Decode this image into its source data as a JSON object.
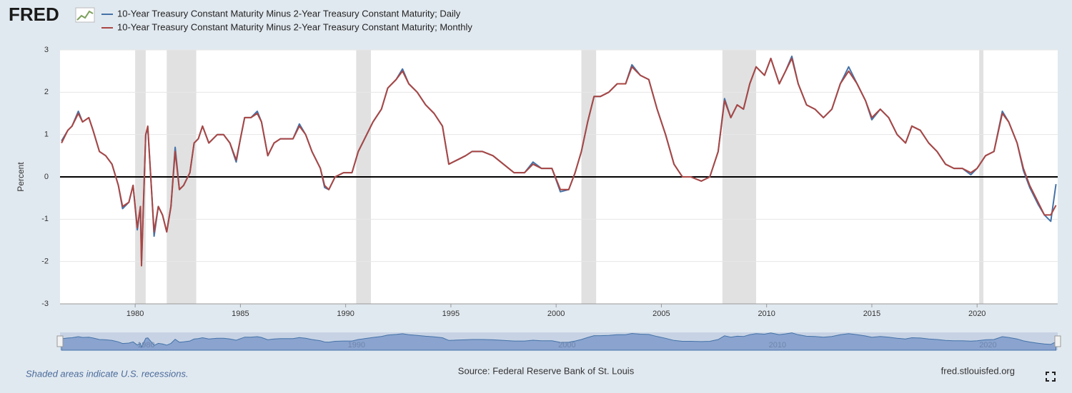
{
  "chart_data": {
    "type": "line",
    "logo": "FRED",
    "ylabel": "Percent",
    "note": "Shaded areas indicate U.S. recessions.",
    "source": "Source: Federal Reserve Bank of St. Louis",
    "site": "fred.stlouisfed.org",
    "xlim": [
      1976.43,
      2023.83
    ],
    "xticks": [
      1980,
      1985,
      1990,
      1995,
      2000,
      2005,
      2010,
      2015,
      2020
    ],
    "ylim": [
      -3,
      3
    ],
    "yticks": [
      -3,
      -2,
      -1,
      0,
      1,
      2,
      3
    ],
    "grid": true,
    "legend": "top",
    "recessions": [
      [
        1980.0,
        1980.5
      ],
      [
        1981.5,
        1982.9
      ],
      [
        1990.5,
        1991.2
      ],
      [
        2001.2,
        2001.9
      ],
      [
        2007.9,
        2009.5
      ],
      [
        2020.1,
        2020.3
      ]
    ],
    "navigator_ticks": [
      1980,
      1990,
      2000,
      2010,
      2020
    ],
    "x": [
      1976.5,
      1976.8,
      1977.0,
      1977.3,
      1977.5,
      1977.8,
      1978.0,
      1978.3,
      1978.6,
      1978.9,
      1979.2,
      1979.4,
      1979.7,
      1979.9,
      1980.1,
      1980.25,
      1980.3,
      1980.5,
      1980.6,
      1980.8,
      1980.9,
      1981.1,
      1981.3,
      1981.5,
      1981.7,
      1981.9,
      1982.1,
      1982.3,
      1982.6,
      1982.8,
      1983.0,
      1983.2,
      1983.5,
      1983.9,
      1984.2,
      1984.5,
      1984.8,
      1985.0,
      1985.2,
      1985.5,
      1985.8,
      1986.0,
      1986.3,
      1986.6,
      1986.9,
      1987.2,
      1987.5,
      1987.8,
      1988.1,
      1988.4,
      1988.8,
      1989.0,
      1989.2,
      1989.5,
      1989.9,
      1990.3,
      1990.6,
      1990.9,
      1991.3,
      1991.7,
      1992.0,
      1992.4,
      1992.7,
      1993.0,
      1993.4,
      1993.8,
      1994.2,
      1994.6,
      1994.9,
      1995.3,
      1995.7,
      1996.0,
      1996.5,
      1997.0,
      1997.5,
      1998.0,
      1998.5,
      1998.9,
      1999.3,
      1999.8,
      2000.2,
      2000.6,
      2000.9,
      2001.2,
      2001.5,
      2001.8,
      2002.1,
      2002.5,
      2002.9,
      2003.3,
      2003.6,
      2004.0,
      2004.4,
      2004.8,
      2005.2,
      2005.6,
      2006.0,
      2006.4,
      2006.9,
      2007.3,
      2007.7,
      2008.0,
      2008.3,
      2008.6,
      2008.9,
      2009.2,
      2009.5,
      2009.9,
      2010.2,
      2010.6,
      2010.9,
      2011.2,
      2011.5,
      2011.9,
      2012.3,
      2012.7,
      2013.1,
      2013.5,
      2013.9,
      2014.3,
      2014.7,
      2015.0,
      2015.4,
      2015.8,
      2016.2,
      2016.6,
      2016.9,
      2017.3,
      2017.7,
      2018.1,
      2018.5,
      2018.9,
      2019.3,
      2019.7,
      2020.0,
      2020.4,
      2020.8,
      2021.2,
      2021.5,
      2021.9,
      2022.2,
      2022.5,
      2022.9,
      2023.2,
      2023.5,
      2023.75
    ],
    "series": [
      {
        "name": "10-Year Treasury Constant Maturity Minus 2-Year Treasury Constant Maturity; Daily",
        "color": "#4572a7",
        "values": [
          0.85,
          1.1,
          1.2,
          1.55,
          1.3,
          1.4,
          1.1,
          0.6,
          0.5,
          0.3,
          -0.2,
          -0.75,
          -0.6,
          -0.2,
          -1.25,
          -0.7,
          -2.0,
          1.0,
          1.15,
          -0.5,
          -1.4,
          -0.7,
          -0.9,
          -1.3,
          -0.7,
          0.7,
          -0.3,
          -0.2,
          0.1,
          0.8,
          0.9,
          1.2,
          0.8,
          1.0,
          1.0,
          0.8,
          0.35,
          0.9,
          1.4,
          1.4,
          1.55,
          1.3,
          0.5,
          0.8,
          0.9,
          0.9,
          0.9,
          1.25,
          1.0,
          0.6,
          0.2,
          -0.25,
          -0.3,
          0.0,
          0.1,
          0.1,
          0.6,
          0.9,
          1.3,
          1.6,
          2.1,
          2.3,
          2.55,
          2.2,
          2.0,
          1.7,
          1.5,
          1.2,
          0.3,
          0.4,
          0.5,
          0.6,
          0.6,
          0.5,
          0.3,
          0.1,
          0.1,
          0.35,
          0.2,
          0.2,
          -0.35,
          -0.3,
          0.1,
          0.6,
          1.3,
          1.9,
          1.9,
          2.0,
          2.2,
          2.2,
          2.65,
          2.4,
          2.3,
          1.6,
          1.0,
          0.3,
          0.0,
          0.0,
          -0.1,
          0.0,
          0.6,
          1.85,
          1.4,
          1.7,
          1.6,
          2.2,
          2.6,
          2.4,
          2.8,
          2.2,
          2.5,
          2.85,
          2.2,
          1.7,
          1.6,
          1.4,
          1.6,
          2.2,
          2.6,
          2.2,
          1.8,
          1.35,
          1.6,
          1.4,
          1.0,
          0.8,
          1.2,
          1.1,
          0.8,
          0.6,
          0.3,
          0.2,
          0.2,
          0.05,
          0.2,
          0.5,
          0.6,
          1.55,
          1.3,
          0.8,
          0.15,
          -0.25,
          -0.65,
          -0.9,
          -1.05,
          -0.17
        ]
      },
      {
        "name": "10-Year Treasury Constant Maturity Minus 2-Year Treasury Constant Maturity; Monthly",
        "color": "#aa4643",
        "values": [
          0.8,
          1.1,
          1.2,
          1.5,
          1.3,
          1.4,
          1.1,
          0.6,
          0.5,
          0.3,
          -0.2,
          -0.7,
          -0.6,
          -0.2,
          -1.2,
          -0.7,
          -2.1,
          1.0,
          1.2,
          -0.5,
          -1.3,
          -0.7,
          -0.9,
          -1.3,
          -0.7,
          0.6,
          -0.3,
          -0.2,
          0.1,
          0.8,
          0.9,
          1.2,
          0.8,
          1.0,
          1.0,
          0.8,
          0.4,
          0.9,
          1.4,
          1.4,
          1.5,
          1.3,
          0.5,
          0.8,
          0.9,
          0.9,
          0.9,
          1.2,
          1.0,
          0.6,
          0.2,
          -0.2,
          -0.3,
          0.0,
          0.1,
          0.1,
          0.6,
          0.9,
          1.3,
          1.6,
          2.1,
          2.3,
          2.5,
          2.2,
          2.0,
          1.7,
          1.5,
          1.2,
          0.3,
          0.4,
          0.5,
          0.6,
          0.6,
          0.5,
          0.3,
          0.1,
          0.1,
          0.3,
          0.2,
          0.2,
          -0.3,
          -0.3,
          0.1,
          0.6,
          1.3,
          1.9,
          1.9,
          2.0,
          2.2,
          2.2,
          2.6,
          2.4,
          2.3,
          1.6,
          1.0,
          0.3,
          0.0,
          0.0,
          -0.1,
          0.0,
          0.6,
          1.8,
          1.4,
          1.7,
          1.6,
          2.2,
          2.6,
          2.4,
          2.8,
          2.2,
          2.5,
          2.8,
          2.2,
          1.7,
          1.6,
          1.4,
          1.6,
          2.2,
          2.5,
          2.2,
          1.8,
          1.4,
          1.6,
          1.4,
          1.0,
          0.8,
          1.2,
          1.1,
          0.8,
          0.6,
          0.3,
          0.2,
          0.2,
          0.1,
          0.2,
          0.5,
          0.6,
          1.5,
          1.3,
          0.8,
          0.2,
          -0.2,
          -0.6,
          -0.9,
          -0.9,
          -0.67
        ]
      }
    ]
  }
}
